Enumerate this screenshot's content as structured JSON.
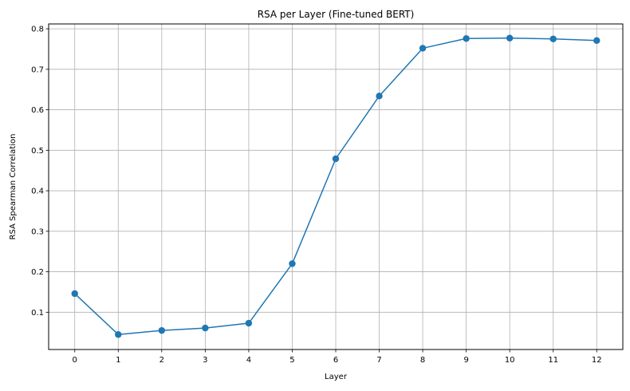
{
  "chart_data": {
    "type": "line",
    "title": "RSA per Layer (Fine-tuned BERT)",
    "xlabel": "Layer",
    "ylabel": "RSA Spearman Correlation",
    "x": [
      0,
      1,
      2,
      3,
      4,
      5,
      6,
      7,
      8,
      9,
      10,
      11,
      12
    ],
    "x_tick_labels": [
      "0",
      "1",
      "2",
      "3",
      "4",
      "5",
      "6",
      "7",
      "8",
      "9",
      "10",
      "11",
      "12"
    ],
    "y_ticks": [
      0.1,
      0.2,
      0.3,
      0.4,
      0.5,
      0.6,
      0.7,
      0.8
    ],
    "y_tick_labels": [
      "0.1",
      "0.2",
      "0.3",
      "0.4",
      "0.5",
      "0.6",
      "0.7",
      "0.8"
    ],
    "xlim": [
      -0.6,
      12.6
    ],
    "ylim": [
      0.008,
      0.812
    ],
    "series": [
      {
        "values": [
          0.146,
          0.045,
          0.055,
          0.061,
          0.073,
          0.22,
          0.479,
          0.634,
          0.752,
          0.776,
          0.777,
          0.775,
          0.771
        ],
        "color": "#1f77b4",
        "marker": "circle"
      }
    ],
    "grid": true,
    "legend": "none"
  }
}
